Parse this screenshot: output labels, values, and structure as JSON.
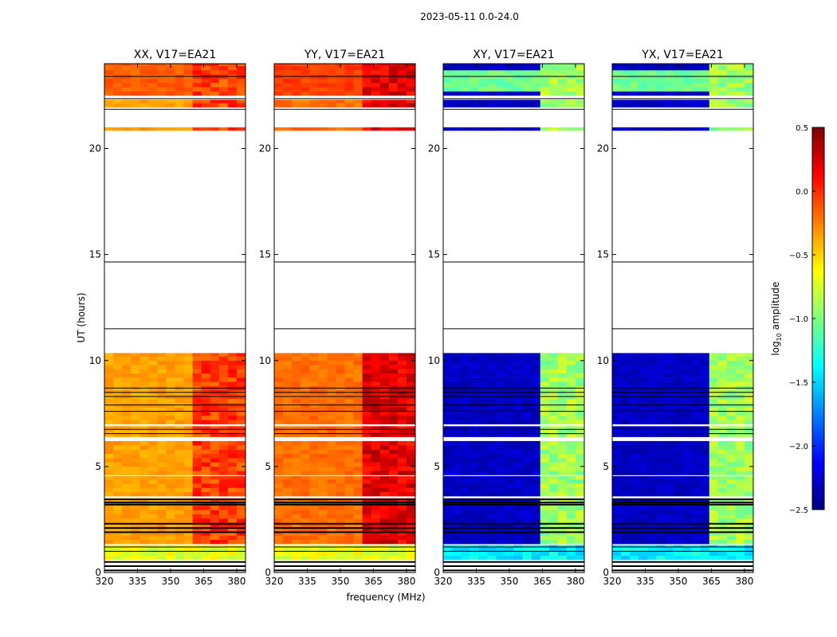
{
  "chart_data": {
    "type": "heatmap",
    "title": "2023-05-11 0.0-24.0",
    "xlabel": "frequency (MHz)",
    "ylabel": "UT (hours)",
    "xlim": [
      320,
      384
    ],
    "ylim": [
      0,
      24
    ],
    "xticks": [
      320,
      335,
      350,
      365,
      380
    ],
    "yticks": [
      0,
      5,
      10,
      15,
      20
    ],
    "colorbar": {
      "label": "log10 amplitude",
      "label_main": "log",
      "label_sub": "10",
      "label_tail": " amplitude",
      "range": [
        -2.5,
        0.5
      ],
      "ticks": [
        "0.5",
        "0.0",
        "−0.5",
        "−1.0",
        "−1.5",
        "−2.0",
        "−2.5"
      ],
      "tick_values": [
        0.5,
        0,
        -0.5,
        -1,
        -1.5,
        -2,
        -2.5
      ]
    },
    "data_segments_hours": [
      [
        0.6,
        1.3
      ],
      [
        1.35,
        3.5
      ],
      [
        3.6,
        4.55
      ],
      [
        4.6,
        6.2
      ],
      [
        6.4,
        6.9
      ],
      [
        7.0,
        10.35
      ],
      [
        20.85,
        21.0
      ],
      [
        21.95,
        22.3
      ],
      [
        22.5,
        24.0
      ]
    ],
    "flag_lines_hours": [
      0.1,
      0.3,
      0.5,
      1.0,
      1.2,
      1.9,
      2.1,
      2.3,
      3.2,
      3.3,
      3.45,
      6.55,
      6.75,
      7.6,
      7.9,
      8.3,
      8.5,
      8.7,
      11.5,
      14.65,
      21.85,
      22.35,
      23.4
    ],
    "panels": [
      {
        "title": "XX, V17=EA21",
        "base": -0.35,
        "rfi_band": [
          362,
          381
        ],
        "rfi_level": -0.05,
        "top_level": -0.15
      },
      {
        "title": "YY, V17=EA21",
        "base": -0.2,
        "rfi_band": [
          362,
          381
        ],
        "rfi_level": 0.2,
        "top_level": -0.05
      },
      {
        "title": "XY, V17=EA21",
        "base": -2.3,
        "rfi_band": [
          363,
          381
        ],
        "rfi_level": -0.9,
        "top_level": -1.05
      },
      {
        "title": "YX, V17=EA21",
        "base": -2.3,
        "rfi_band": [
          363,
          381
        ],
        "rfi_level": -0.9,
        "top_level": -1.05
      }
    ]
  }
}
